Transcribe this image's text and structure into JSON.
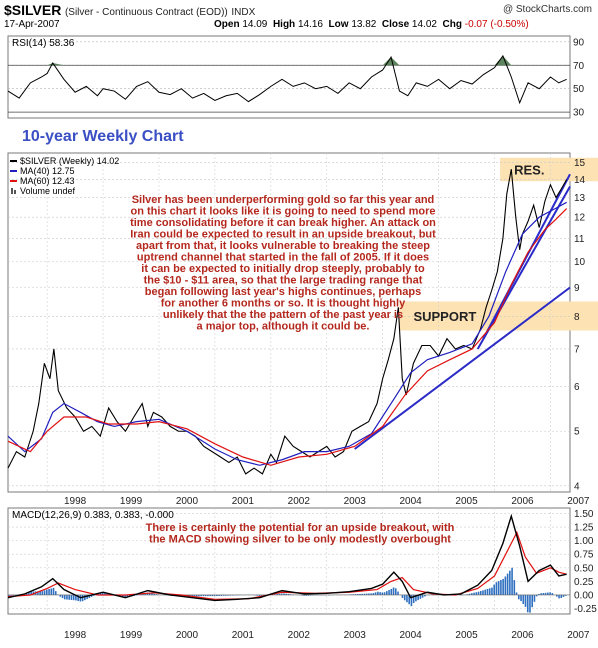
{
  "header": {
    "symbol": "$SILVER",
    "name": "(Silver - Continuous Contract (EOD))",
    "exchange": "INDX",
    "brand": "@ StockCharts.com",
    "date": "17-Apr-2007",
    "ohlc": [
      {
        "label": "Open",
        "value": "14.09"
      },
      {
        "label": "High",
        "value": "14.16"
      },
      {
        "label": "Low",
        "value": "13.82"
      },
      {
        "label": "Close",
        "value": "14.02"
      }
    ],
    "chg_label": "Chg",
    "chg_value": "-0.07 (-0.50%)"
  },
  "colors": {
    "price": "#000000",
    "ma40": "#1f1fbf",
    "ma60": "#e01010",
    "trendline": "#2a2ac8",
    "zone": "#fde2b4",
    "annotation": "#b4281e",
    "title_blue": "#3a4fc4",
    "rsi_fill": "#4e7a4e",
    "macd_hist": "#2e6fc0"
  },
  "chart_data": [
    {
      "type": "line",
      "panel": "rsi",
      "legend": "RSI(14) 58.36",
      "yticks": [
        30,
        50,
        70,
        90
      ],
      "ylim": [
        25,
        95
      ],
      "overbought": 70,
      "oversold": 30,
      "x": [
        1997.3,
        1997.5,
        1997.7,
        1997.9,
        1998.0,
        1998.1,
        1998.3,
        1998.5,
        1998.7,
        1998.9,
        1999.0,
        1999.2,
        1999.4,
        1999.6,
        1999.8,
        2000.0,
        2000.2,
        2000.4,
        2000.6,
        2000.8,
        2001.0,
        2001.2,
        2001.4,
        2001.6,
        2001.8,
        2002.0,
        2002.2,
        2002.4,
        2002.6,
        2002.8,
        2003.0,
        2003.2,
        2003.4,
        2003.6,
        2003.8,
        2004.0,
        2004.15,
        2004.3,
        2004.45,
        2004.6,
        2004.8,
        2005.0,
        2005.2,
        2005.4,
        2005.6,
        2005.8,
        2006.0,
        2006.15,
        2006.3,
        2006.45,
        2006.6,
        2006.8,
        2007.0,
        2007.15,
        2007.29
      ],
      "values": [
        48,
        42,
        55,
        60,
        63,
        72,
        58,
        47,
        52,
        44,
        50,
        48,
        41,
        52,
        56,
        47,
        45,
        50,
        42,
        46,
        40,
        44,
        46,
        39,
        45,
        52,
        58,
        52,
        55,
        50,
        52,
        46,
        55,
        50,
        60,
        66,
        77,
        48,
        44,
        55,
        52,
        58,
        50,
        57,
        54,
        62,
        68,
        78,
        60,
        38,
        55,
        50,
        60,
        55,
        58
      ]
    },
    {
      "type": "line",
      "panel": "price",
      "title": "10-year Weekly Chart",
      "legend": [
        {
          "name": "$SILVER (Weekly) 14.02",
          "key": "price"
        },
        {
          "name": "MA(40) 12.75",
          "key": "ma40"
        },
        {
          "name": "MA(60) 12.43",
          "key": "ma60"
        },
        {
          "name": "Volume undef",
          "key": "volume"
        }
      ],
      "scale": "log",
      "yticks": [
        4,
        5,
        6,
        7,
        8,
        9,
        10,
        11,
        12,
        13,
        14,
        15
      ],
      "ylim": [
        3.9,
        15.6
      ],
      "xlim": [
        1997.3,
        2007.35
      ],
      "xticks": [
        "1998",
        "1999",
        "2000",
        "2001",
        "2002",
        "2003",
        "2004",
        "2005",
        "2006",
        "2007"
      ],
      "xtick_values": [
        1998.0,
        1999.0,
        2000.0,
        2001.0,
        2002.0,
        2003.0,
        2004.0,
        2005.0,
        2006.0,
        2007.0
      ],
      "series": [
        {
          "key": "price",
          "x": [
            1997.3,
            1997.45,
            1997.6,
            1997.75,
            1997.85,
            1997.95,
            1998.05,
            1998.12,
            1998.2,
            1998.35,
            1998.5,
            1998.65,
            1998.8,
            1998.95,
            1999.1,
            1999.25,
            1999.4,
            1999.55,
            1999.7,
            1999.8,
            1999.9,
            2000.05,
            2000.2,
            2000.35,
            2000.5,
            2000.65,
            2000.8,
            2000.95,
            2001.1,
            2001.25,
            2001.4,
            2001.55,
            2001.7,
            2001.85,
            2002.0,
            2002.1,
            2002.25,
            2002.4,
            2002.55,
            2002.7,
            2002.85,
            2003.0,
            2003.15,
            2003.3,
            2003.45,
            2003.6,
            2003.75,
            2003.9,
            2004.0,
            2004.1,
            2004.2,
            2004.28,
            2004.35,
            2004.42,
            2004.55,
            2004.7,
            2004.85,
            2005.0,
            2005.15,
            2005.3,
            2005.45,
            2005.6,
            2005.75,
            2005.85,
            2005.95,
            2006.05,
            2006.15,
            2006.22,
            2006.3,
            2006.38,
            2006.45,
            2006.5,
            2006.6,
            2006.7,
            2006.8,
            2006.9,
            2007.0,
            2007.1,
            2007.2,
            2007.29
          ],
          "values": [
            4.3,
            4.6,
            4.5,
            5.0,
            5.6,
            6.6,
            6.2,
            7.0,
            5.9,
            5.5,
            5.3,
            5.0,
            5.1,
            4.9,
            5.5,
            5.2,
            5.0,
            5.3,
            5.6,
            5.1,
            5.4,
            5.3,
            5.1,
            5.0,
            5.0,
            4.9,
            4.7,
            4.6,
            4.5,
            4.4,
            4.5,
            4.2,
            4.3,
            4.2,
            4.55,
            4.4,
            4.9,
            4.7,
            4.6,
            4.5,
            4.6,
            4.7,
            4.5,
            4.6,
            5.0,
            5.1,
            5.2,
            5.6,
            6.2,
            6.7,
            7.3,
            8.3,
            6.2,
            5.8,
            6.6,
            7.1,
            7.1,
            6.8,
            7.3,
            7.0,
            7.1,
            7.0,
            7.6,
            8.3,
            8.9,
            9.6,
            11.0,
            13.2,
            14.6,
            12.0,
            10.5,
            11.2,
            11.8,
            12.6,
            11.5,
            12.8,
            13.7,
            13.0,
            13.5,
            14.0
          ]
        },
        {
          "key": "ma40",
          "x": [
            1997.3,
            1997.6,
            1997.9,
            1998.1,
            1998.3,
            1998.6,
            1998.9,
            1999.2,
            1999.6,
            2000.0,
            2000.5,
            2001.0,
            2001.4,
            2001.8,
            2002.2,
            2002.6,
            2003.0,
            2003.4,
            2003.8,
            2004.2,
            2004.5,
            2004.8,
            2005.2,
            2005.6,
            2005.9,
            2006.2,
            2006.5,
            2006.8,
            2007.1,
            2007.29
          ],
          "values": [
            4.9,
            4.6,
            4.85,
            5.4,
            5.6,
            5.4,
            5.2,
            5.1,
            5.2,
            5.25,
            5.0,
            4.65,
            4.45,
            4.35,
            4.45,
            4.6,
            4.6,
            4.7,
            4.95,
            5.7,
            6.35,
            6.7,
            6.9,
            7.15,
            8.0,
            9.6,
            11.2,
            12.0,
            12.45,
            12.75
          ]
        },
        {
          "key": "ma60",
          "x": [
            1997.3,
            1997.7,
            1998.0,
            1998.3,
            1998.7,
            1999.1,
            1999.6,
            2000.0,
            2000.5,
            2001.0,
            2001.5,
            2002.0,
            2002.5,
            2003.0,
            2003.5,
            2004.0,
            2004.4,
            2004.8,
            2005.2,
            2005.6,
            2006.0,
            2006.3,
            2006.6,
            2006.9,
            2007.1,
            2007.29
          ],
          "values": [
            4.8,
            4.6,
            5.0,
            5.3,
            5.3,
            5.15,
            5.15,
            5.2,
            5.05,
            4.75,
            4.5,
            4.35,
            4.5,
            4.55,
            4.7,
            5.1,
            5.8,
            6.4,
            6.7,
            7.0,
            7.8,
            9.1,
            10.4,
            11.4,
            11.9,
            12.43
          ]
        }
      ],
      "trendlines": [
        {
          "x": [
            2003.5,
            2007.35
          ],
          "values": [
            4.65,
            9.0
          ]
        },
        {
          "x": [
            2005.7,
            2007.35
          ],
          "values": [
            7.0,
            13.6
          ]
        },
        {
          "x": [
            2005.8,
            2007.35
          ],
          "values": [
            7.3,
            14.3
          ]
        }
      ],
      "zones": [
        {
          "label": "RES.",
          "from": 13.9,
          "to": 15.3,
          "x_from": 2006.1
        },
        {
          "label": "SUPPORT",
          "from": 7.55,
          "to": 8.5,
          "x_from": 2004.3
        }
      ],
      "annotation": "Silver has been underperforming gold so far this year and on this chart it looks like it is going to need to spend more time consolidating before it can break higher. An attack on Iran could be expected to result in an upside breakout, but apart from that, it looks vulnerable to breaking the steep uptrend channel that started in the fall of 2005. If it does it can be expected to initially drop steeply, probably to the $10 - $11 area, so that the large trading range that began following last year's highs continues, perhaps for another 6 months or so. It is thought highly unlikely that the the pattern of the past year is a major top, although it could be."
    },
    {
      "type": "line",
      "panel": "macd",
      "legend": "MACD(12,26,9) 0.383, 0.383, -0.000",
      "annotation": "There is certainly the potential for an upside breakout, with the MACD showing silver to be only modestly overbought",
      "yticks": [
        -0.25,
        0.0,
        0.25,
        0.5,
        0.75,
        1.0,
        1.25,
        1.5
      ],
      "ylim": [
        -0.35,
        1.6
      ],
      "xticks": [
        "1998",
        "1999",
        "2000",
        "2001",
        "2002",
        "2003",
        "2004",
        "2005",
        "2006",
        "2007"
      ],
      "xtick_values": [
        1998.0,
        1999.0,
        2000.0,
        2001.0,
        2002.0,
        2003.0,
        2004.0,
        2005.0,
        2006.0,
        2007.0
      ],
      "series": [
        {
          "key": "macd",
          "x": [
            1997.3,
            1997.6,
            1997.9,
            1998.1,
            1998.3,
            1998.6,
            1999.0,
            1999.4,
            1999.8,
            2000.2,
            2000.6,
            2001.0,
            2001.4,
            2001.8,
            2002.2,
            2002.6,
            2003.0,
            2003.4,
            2003.8,
            2004.0,
            2004.2,
            2004.35,
            2004.5,
            2004.8,
            2005.1,
            2005.4,
            2005.7,
            2005.95,
            2006.15,
            2006.3,
            2006.45,
            2006.6,
            2006.8,
            2007.0,
            2007.15,
            2007.29
          ],
          "values": [
            -0.05,
            0.02,
            0.15,
            0.3,
            0.1,
            -0.05,
            0.05,
            -0.05,
            0.08,
            0.0,
            -0.05,
            -0.1,
            -0.08,
            -0.05,
            0.08,
            0.02,
            0.03,
            0.06,
            0.12,
            0.2,
            0.42,
            0.25,
            -0.05,
            0.05,
            0.0,
            0.02,
            0.18,
            0.45,
            0.95,
            1.45,
            0.9,
            0.25,
            0.45,
            0.55,
            0.35,
            0.383
          ]
        },
        {
          "key": "signal",
          "x": [
            1997.3,
            1997.7,
            1998.0,
            1998.2,
            1998.5,
            1998.9,
            1999.4,
            1999.9,
            2000.4,
            2001.0,
            2001.6,
            2002.2,
            2002.8,
            2003.4,
            2003.9,
            2004.15,
            2004.35,
            2004.55,
            2004.9,
            2005.3,
            2005.7,
            2006.0,
            2006.25,
            2006.4,
            2006.55,
            2006.75,
            2007.0,
            2007.15,
            2007.29
          ],
          "values": [
            -0.03,
            0.0,
            0.12,
            0.22,
            0.1,
            0.0,
            0.0,
            0.04,
            0.0,
            -0.08,
            -0.07,
            0.05,
            0.03,
            0.05,
            0.1,
            0.25,
            0.32,
            0.1,
            0.02,
            0.0,
            0.12,
            0.35,
            0.85,
            1.15,
            0.7,
            0.4,
            0.5,
            0.42,
            0.383
          ]
        }
      ]
    }
  ]
}
